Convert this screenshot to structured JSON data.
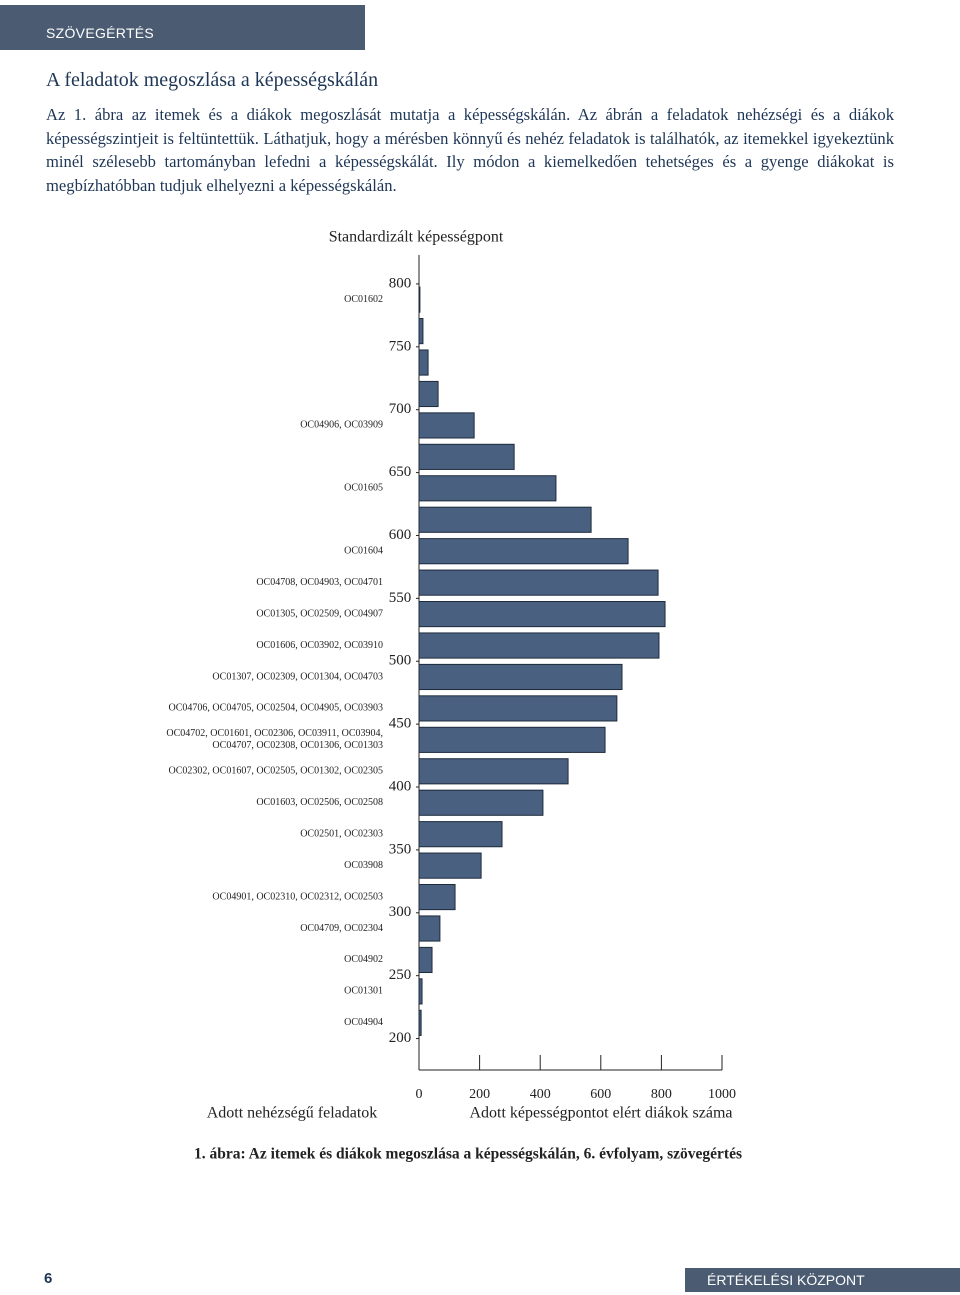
{
  "header": {
    "section": "SZÖVEGÉRTÉS"
  },
  "heading": "A feladatok megoszlása a képességskálán",
  "paragraph": "Az 1. ábra az itemek és a diákok megoszlását mutatja a képességskálán. Az ábrán a feladatok nehézségi és a diákok képességszintjeit is feltüntettük. Láthatjuk, hogy a mérésben könnyű és nehéz feladatok is találhatók, az itemekkel igyekeztünk minél szélesebb tartományban lefedni a képességskálát. Ily módon a kiemelkedően tehetséges és a gyenge diákokat is megbízhatóbban tudjuk elhelyezni a képességskálán.",
  "chart_data": {
    "type": "bar",
    "title": "Standardizált képességpont",
    "xlabel": "Adott képességpontot elért diákok száma",
    "items_label": "Adott nehézségű feladatok",
    "caption": "1. ábra: Az itemek és diákok megoszlása a képességskálán, 6. évfolyam, szövegértés",
    "orientation": "horizontal",
    "color": "#4a6080",
    "y": [
      787.5,
      762.5,
      737.5,
      712.5,
      687.5,
      662.5,
      637.5,
      612.5,
      587.5,
      562.5,
      537.5,
      512.5,
      487.5,
      462.5,
      437.5,
      412.5,
      387.5,
      362.5,
      337.5,
      312.5,
      287.5,
      262.5,
      237.5,
      212.5
    ],
    "values": [
      3,
      13,
      30,
      63,
      182,
      314,
      452,
      568,
      690,
      789,
      812,
      792,
      670,
      653,
      614,
      492,
      409,
      274,
      205,
      119,
      69,
      43,
      10,
      7
    ],
    "ylim": [
      175,
      823
    ],
    "yticks": [
      800,
      750,
      700,
      650,
      600,
      550,
      500,
      450,
      400,
      350,
      300,
      250,
      200
    ],
    "xlim": [
      0,
      1000
    ],
    "xticks": [
      0,
      200,
      400,
      600,
      800,
      1000
    ],
    "items": [
      {
        "value": 787.5,
        "lines": [
          "OC01602"
        ]
      },
      {
        "value": 687.5,
        "lines": [
          "OC04906, OC03909"
        ]
      },
      {
        "value": 637.5,
        "lines": [
          "OC01605"
        ]
      },
      {
        "value": 587.5,
        "lines": [
          "OC01604"
        ]
      },
      {
        "value": 562.5,
        "lines": [
          "OC04708, OC04903, OC04701"
        ]
      },
      {
        "value": 537.5,
        "lines": [
          "OC01305, OC02509, OC04907"
        ]
      },
      {
        "value": 512.5,
        "lines": [
          "OC01606, OC03902, OC03910"
        ]
      },
      {
        "value": 487.5,
        "lines": [
          "OC01307, OC02309, OC01304, OC04703"
        ]
      },
      {
        "value": 462.5,
        "lines": [
          "OC04706, OC04705, OC02504, OC04905, OC03903"
        ]
      },
      {
        "value": 437.5,
        "lines": [
          "OC04702, OC01601, OC02306, OC03911, OC03904,",
          "OC04707, OC02308, OC01306, OC01303"
        ]
      },
      {
        "value": 412.5,
        "lines": [
          "OC02302, OC01607, OC02505, OC01302, OC02305"
        ]
      },
      {
        "value": 387.5,
        "lines": [
          "OC01603, OC02506, OC02508"
        ]
      },
      {
        "value": 362.5,
        "lines": [
          "OC02501, OC02303"
        ]
      },
      {
        "value": 337.5,
        "lines": [
          "OC03908"
        ]
      },
      {
        "value": 312.5,
        "lines": [
          "OC04901, OC02310, OC02312, OC02503"
        ]
      },
      {
        "value": 287.5,
        "lines": [
          "OC04709, OC02304"
        ]
      },
      {
        "value": 262.5,
        "lines": [
          "OC04902"
        ]
      },
      {
        "value": 237.5,
        "lines": [
          "OC01301"
        ]
      },
      {
        "value": 212.5,
        "lines": [
          "OC04904"
        ]
      }
    ]
  },
  "footer": {
    "page": "6",
    "publisher": "ÉRTÉKELÉSI KÖZPONT"
  }
}
